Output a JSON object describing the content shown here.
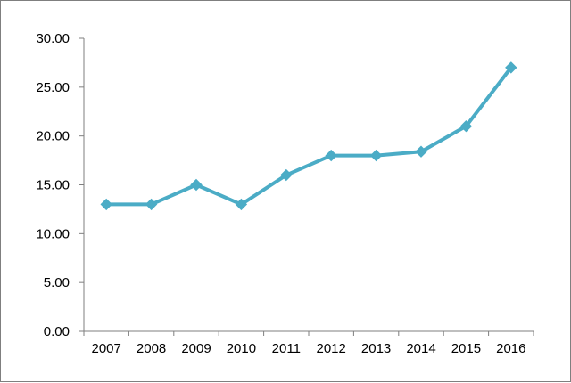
{
  "chart_data": {
    "type": "line",
    "title": "",
    "xlabel": "",
    "ylabel": "",
    "categories": [
      "2007",
      "2008",
      "2009",
      "2010",
      "2011",
      "2012",
      "2013",
      "2014",
      "2015",
      "2016"
    ],
    "series": [
      {
        "values": [
          13.0,
          13.0,
          15.0,
          13.0,
          16.0,
          18.0,
          18.0,
          18.4,
          21.0,
          27.0
        ]
      }
    ],
    "ylim": [
      0,
      30
    ],
    "yticks": [
      "0.00",
      "5.00",
      "10.00",
      "15.00",
      "20.00",
      "25.00",
      "30.00"
    ],
    "ytick_values": [
      0,
      5,
      10,
      15,
      20,
      25,
      30
    ],
    "grid": false,
    "legend": "none",
    "marker": "diamond",
    "colors": {
      "line": "#4bacc6",
      "axis": "#7f7f7f",
      "frame": "#7f7f7f"
    }
  }
}
